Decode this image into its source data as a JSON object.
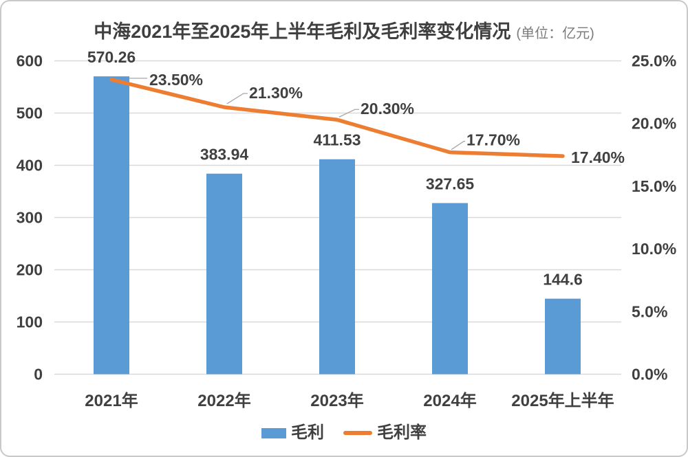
{
  "title": {
    "main": "中海2021年至2025年上半年毛利及毛利率变化情况",
    "unit": "(单位：亿元)"
  },
  "colors": {
    "bar": "#5B9BD5",
    "line": "#ED7D31",
    "label_text": "#404040",
    "axis_text": "#404040",
    "unit_text": "#7b7b7b",
    "gridline": "#D9D9D9",
    "leader": "#A6A6A6",
    "border": "#C9C9C9",
    "background": "#FFFFFF"
  },
  "chart_data": {
    "type": "combo-bar-line",
    "title": "中海2021年至2025年上半年毛利及毛利率变化情况",
    "unit": "(单位：亿元)",
    "categories": [
      "2021年",
      "2022年",
      "2023年",
      "2024年",
      "2025年上半年"
    ],
    "series": [
      {
        "name": "毛利",
        "type": "bar",
        "axis": "left",
        "color": "#5B9BD5",
        "values": [
          570.26,
          383.94,
          411.53,
          327.65,
          144.6
        ],
        "labels": [
          "570.26",
          "383.94",
          "411.53",
          "327.65",
          "144.6"
        ]
      },
      {
        "name": "毛利率",
        "type": "line",
        "axis": "right",
        "color": "#ED7D31",
        "values": [
          23.5,
          21.3,
          20.3,
          17.7,
          17.4
        ],
        "labels": [
          "23.50%",
          "21.30%",
          "20.30%",
          "17.70%",
          "17.40%"
        ]
      }
    ],
    "left_axis": {
      "min": 0,
      "max": 600,
      "step": 100,
      "ticks": [
        "0",
        "100",
        "200",
        "300",
        "400",
        "500",
        "600"
      ]
    },
    "right_axis": {
      "min": 0,
      "max": 25,
      "step": 5,
      "ticks": [
        "0.0%",
        "5.0%",
        "10.0%",
        "15.0%",
        "20.0%",
        "25.0%"
      ]
    },
    "grid": true,
    "legend_position": "bottom"
  }
}
